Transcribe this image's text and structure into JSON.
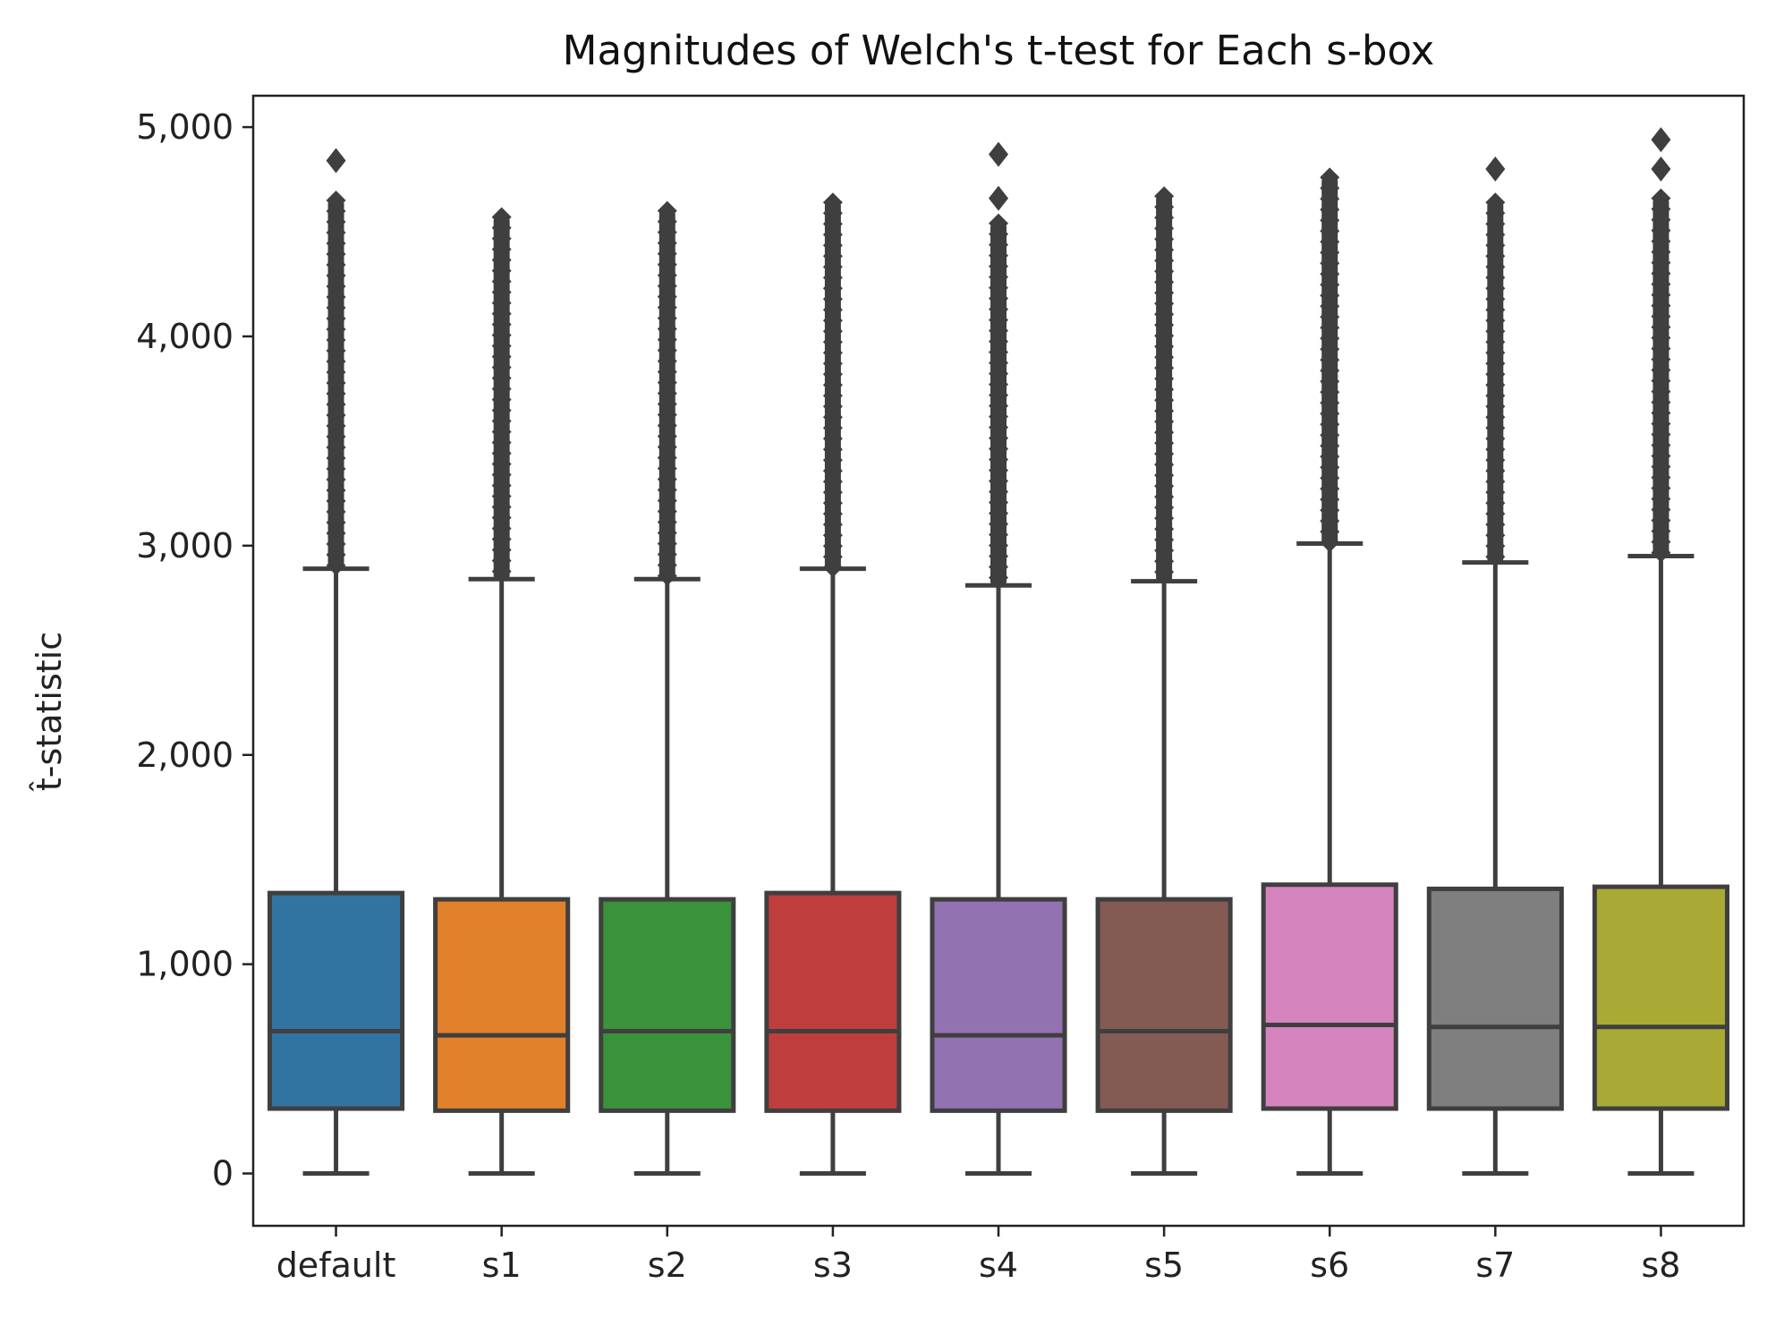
{
  "chart_data": {
    "type": "box",
    "title": "Magnitudes of Welch's t-test for Each s-box",
    "xlabel": "",
    "ylabel": "t̂-statistic",
    "ylim": [
      -250,
      5150
    ],
    "yticks": [
      0,
      1000,
      2000,
      3000,
      4000,
      5000
    ],
    "ytick_labels": [
      "0",
      "1,000",
      "2,000",
      "3,000",
      "4,000",
      "5,000"
    ],
    "grid": false,
    "legend": false,
    "categories": [
      "default",
      "s1",
      "s2",
      "s3",
      "s4",
      "s5",
      "s6",
      "s7",
      "s8"
    ],
    "series": [
      {
        "category": "default",
        "color": "#3274a1",
        "whisker_low": 0,
        "q1": 310,
        "median": 680,
        "q3": 1340,
        "whisker_high": 2890,
        "outlier_min": 2890,
        "outlier_dense_max": 4650,
        "outliers_extreme": [
          4840
        ]
      },
      {
        "category": "s1",
        "color": "#e1812c",
        "whisker_low": 0,
        "q1": 300,
        "median": 660,
        "q3": 1310,
        "whisker_high": 2840,
        "outlier_min": 2840,
        "outlier_dense_max": 4570,
        "outliers_extreme": []
      },
      {
        "category": "s2",
        "color": "#3a923a",
        "whisker_low": 0,
        "q1": 300,
        "median": 680,
        "q3": 1310,
        "whisker_high": 2840,
        "outlier_min": 2840,
        "outlier_dense_max": 4600,
        "outliers_extreme": []
      },
      {
        "category": "s3",
        "color": "#c03d3e",
        "whisker_low": 0,
        "q1": 300,
        "median": 680,
        "q3": 1340,
        "whisker_high": 2890,
        "outlier_min": 2890,
        "outlier_dense_max": 4640,
        "outliers_extreme": []
      },
      {
        "category": "s4",
        "color": "#9372b2",
        "whisker_low": 0,
        "q1": 300,
        "median": 660,
        "q3": 1310,
        "whisker_high": 2810,
        "outlier_min": 2810,
        "outlier_dense_max": 4540,
        "outliers_extreme": [
          4660,
          4870
        ]
      },
      {
        "category": "s5",
        "color": "#845b53",
        "whisker_low": 0,
        "q1": 300,
        "median": 680,
        "q3": 1310,
        "whisker_high": 2830,
        "outlier_min": 2830,
        "outlier_dense_max": 4670,
        "outliers_extreme": []
      },
      {
        "category": "s6",
        "color": "#d684bd",
        "whisker_low": 0,
        "q1": 310,
        "median": 710,
        "q3": 1380,
        "whisker_high": 3010,
        "outlier_min": 3010,
        "outlier_dense_max": 4760,
        "outliers_extreme": []
      },
      {
        "category": "s7",
        "color": "#7f7f7f",
        "whisker_low": 0,
        "q1": 310,
        "median": 700,
        "q3": 1360,
        "whisker_high": 2920,
        "outlier_min": 2920,
        "outlier_dense_max": 4640,
        "outliers_extreme": [
          4800
        ]
      },
      {
        "category": "s8",
        "color": "#a9aa35",
        "whisker_low": 0,
        "q1": 310,
        "median": 700,
        "q3": 1370,
        "whisker_high": 2950,
        "outlier_min": 2950,
        "outlier_dense_max": 4660,
        "outliers_extreme": [
          4800,
          4940
        ]
      }
    ]
  }
}
